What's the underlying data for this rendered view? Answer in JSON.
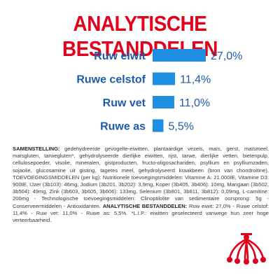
{
  "title": "ANALYTISCHE BESTANDDELEN",
  "colors": {
    "title": "#e2001a",
    "label": "#1f5ba8",
    "bar": "#1d8ee0",
    "text": "#3a3a3a",
    "logo": "#e2001a"
  },
  "chart_data": {
    "type": "bar",
    "orientation": "horizontal",
    "title": "ANALYTISCHE BESTANDDELEN",
    "categories": [
      "Ruw eiwit",
      "Ruwe celstof",
      "Ruw vet",
      "Ruwe as"
    ],
    "values": [
      27.0,
      11.4,
      11.0,
      5.5
    ],
    "value_labels": [
      "27,0%",
      "11,4%",
      "11,0%",
      "5,5%"
    ],
    "unit": "%",
    "xlim": [
      0,
      27.0
    ],
    "grid": false,
    "legend": "none"
  },
  "composition": {
    "heading": "SAMENSTELLING:",
    "text": " gedehydreerde gevogelte-eiwitten, plantaardige vezels, maïs, gerst, maïsmeel, maïsgluten, tarwegluten*, gehydrolyseerde dierlijke eiwitten, rijst, tarwe, dierlijke vetten, bietenpulp, cellulosepoeder, visolie, mineralen, gistproducten, fructo-oligosachariden, psyllium en psylliumzaden, sojaolie, glucosamine uit gisting, tagetes meel, gehydrolyseerd kraakbeen (bron van chondroitine), TOEVOEGINGSMIDDELEN (per kg): Nutritionele toevoegingsmiddelen: Vitamine A: 21.000IE, Vitamine D3: 900IE, IJzer (3b103): 46mg, Jodium (3b201, 3b202): 3,9mg, Koper (3b405, 3b406): 10mg, Mangaan (3b502, 3b504): 49mg, Zink (3b603, 3b605, 3b606): 133mg, Selenium (3b801, 3b811, 3b812): 0,09mg, L-carnitine: 200mg - Technologische toevoegingsmiddelen: Clinoptilolite van sedimentaire oorsprong: 5g - Conserveermiddelen - Antioxidanten. ",
    "analysis_heading": "ANALYTISCHE BESTANDDELEN:",
    "analysis_text": " Ruw eiwit: 27,0% - Ruwe celstof: 11,4% - Ruw vet: 11,0% - Ruwe as: 5,5%. *L.I.P.: eiwitten geselecteerd vanwege hun zeer hoge verteerbaarheid."
  },
  "logo": {
    "icon": "royal-canin-crown-icon"
  }
}
